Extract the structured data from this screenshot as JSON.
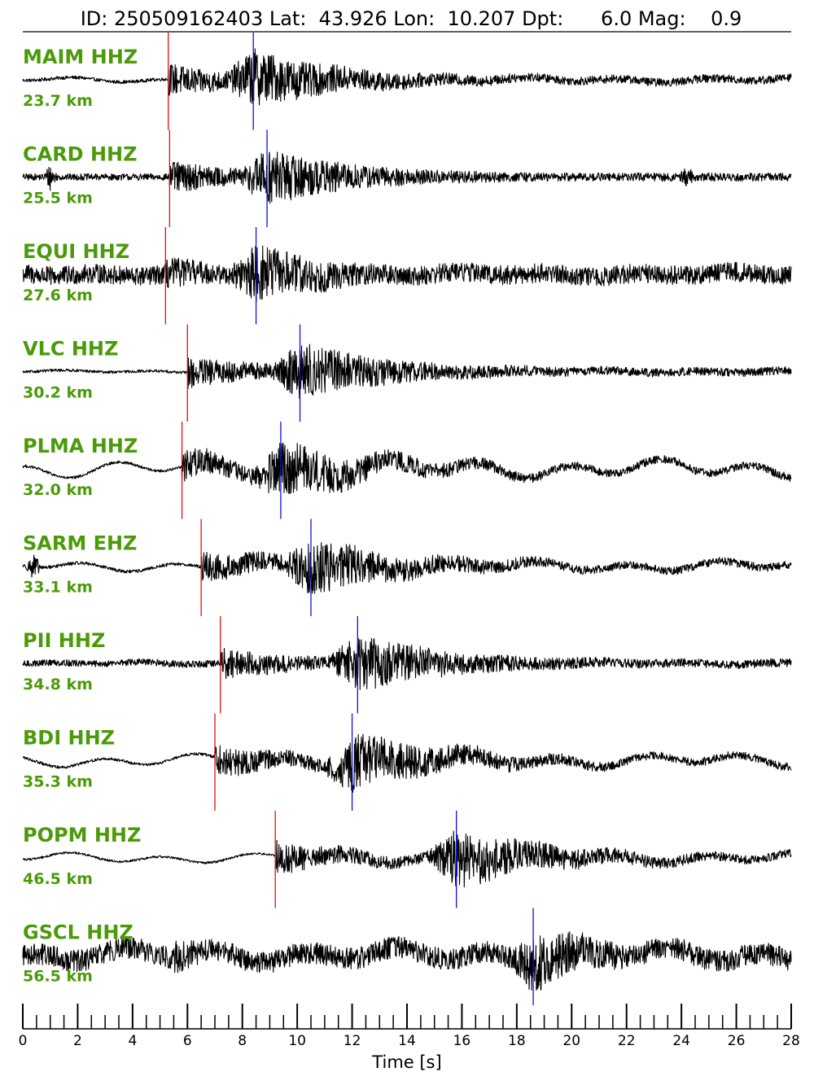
{
  "title": "ID: 250509162403 Lat:  43.926 Lon:  10.207 Dpt:      6.0 Mag:    0.9",
  "chart_data": {
    "type": "line",
    "xlabel": "Time [s]",
    "xlim": [
      0,
      28
    ],
    "major_tick_step": 2,
    "minor_tick_step": 0.5,
    "x_ticks": [
      "0",
      "2",
      "4",
      "6",
      "8",
      "10",
      "12",
      "14",
      "16",
      "18",
      "20",
      "22",
      "24",
      "26",
      "28"
    ],
    "colors": {
      "trace": "#000000",
      "label": "#4b9a0a",
      "p_pick": "#e01010",
      "s_pick": "#1010e0",
      "axis": "#000000"
    },
    "traces": [
      {
        "station": "MAIM HHZ",
        "distance": "23.7 km",
        "p_time": 5.3,
        "s_time": 8.4,
        "amplitude": 1.0,
        "pre_noise": 0.06,
        "long_period": 0.1
      },
      {
        "station": "CARD HHZ",
        "distance": "25.5 km",
        "p_time": 5.35,
        "s_time": 8.9,
        "amplitude": 1.0,
        "pre_noise": 0.12,
        "long_period": 0.0,
        "spikes": [
          1.0,
          24.2
        ]
      },
      {
        "station": "EQUI HHZ",
        "distance": "27.6 km",
        "p_time": 5.2,
        "s_time": 8.5,
        "amplitude": 1.0,
        "pre_noise": 0.35,
        "long_period": 0.1
      },
      {
        "station": "VLC HHZ",
        "distance": "30.2 km",
        "p_time": 6.0,
        "s_time": 10.1,
        "amplitude": 1.0,
        "pre_noise": 0.05,
        "long_period": 0.05
      },
      {
        "station": "PLMA HHZ",
        "distance": "32.0 km",
        "p_time": 5.8,
        "s_time": 9.4,
        "amplitude": 1.0,
        "pre_noise": 0.05,
        "long_period": 0.35
      },
      {
        "station": "SARM EHZ",
        "distance": "33.1 km",
        "p_time": 6.5,
        "s_time": 10.5,
        "amplitude": 1.0,
        "pre_noise": 0.06,
        "long_period": 0.2,
        "spikes": [
          0.4
        ]
      },
      {
        "station": "PII HHZ",
        "distance": "34.8 km",
        "p_time": 7.2,
        "s_time": 12.2,
        "amplitude": 1.0,
        "pre_noise": 0.12,
        "long_period": 0.05
      },
      {
        "station": "BDI HHZ",
        "distance": "35.3 km",
        "p_time": 7.0,
        "s_time": 12.0,
        "amplitude": 1.0,
        "pre_noise": 0.05,
        "long_period": 0.25
      },
      {
        "station": "POPM HHZ",
        "distance": "46.5 km",
        "p_time": 9.2,
        "s_time": 15.8,
        "amplitude": 1.0,
        "pre_noise": 0.04,
        "long_period": 0.2
      },
      {
        "station": "GSCL HHZ",
        "distance": "56.5 km",
        "p_time": null,
        "s_time": 18.6,
        "amplitude": 1.0,
        "pre_noise": 0.4,
        "long_period": 0.3
      }
    ]
  }
}
